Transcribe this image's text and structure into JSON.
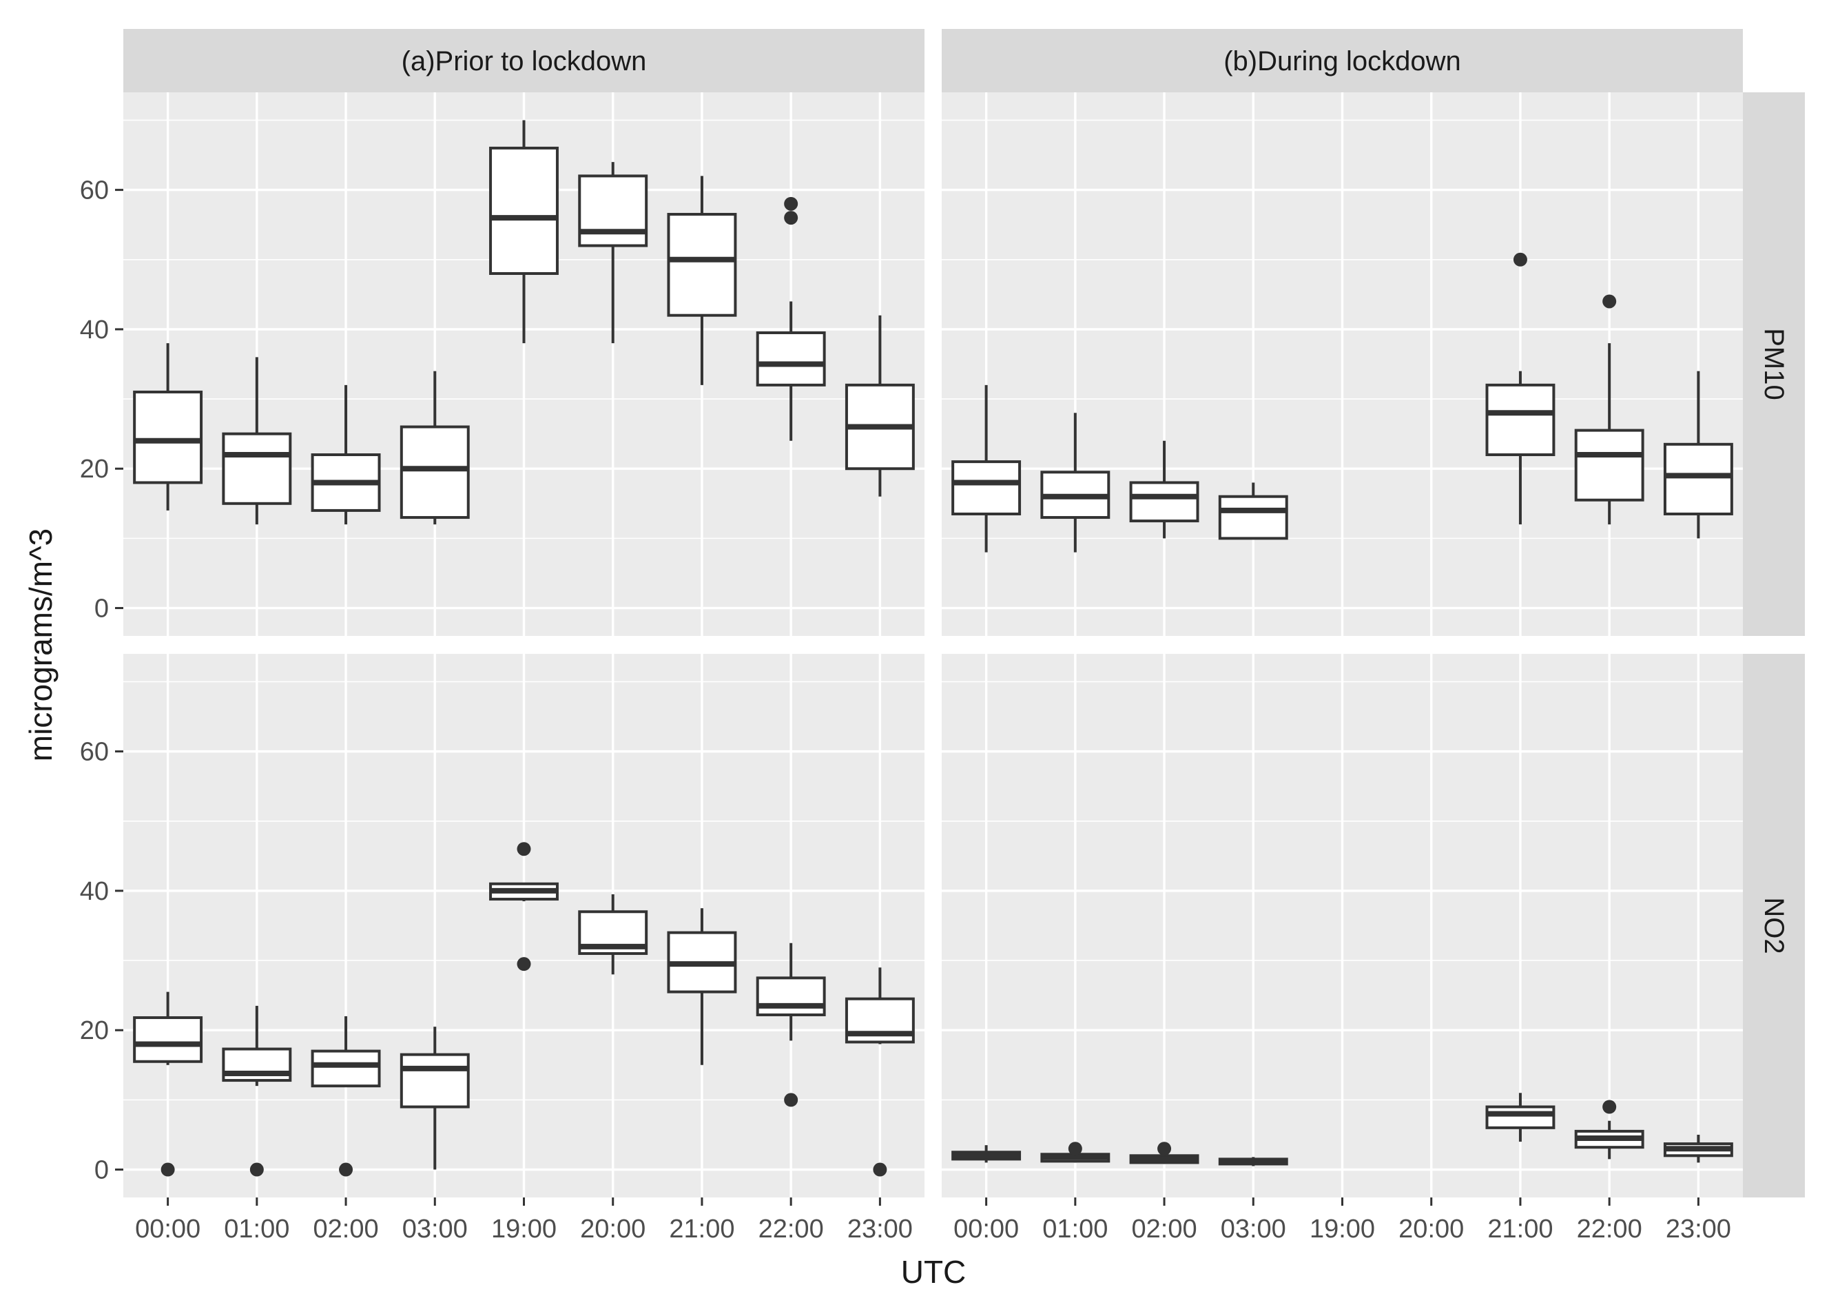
{
  "chart_data": {
    "type": "boxplot",
    "xlabel": "UTC",
    "ylabel": "micrograms/m^3",
    "categories": [
      "00:00",
      "01:00",
      "02:00",
      "03:00",
      "19:00",
      "20:00",
      "21:00",
      "22:00",
      "23:00"
    ],
    "ylim": [
      -4,
      74
    ],
    "yticks": [
      0,
      20,
      40,
      60
    ],
    "grid": true,
    "columns": [
      "(a)Prior to lockdown",
      "(b)During lockdown"
    ],
    "rows": [
      "PM10",
      "NO2"
    ],
    "panels": [
      {
        "col": "(a)Prior to lockdown",
        "row": "PM10",
        "boxes": [
          {
            "category": "00:00",
            "min": 14,
            "q1": 18,
            "median": 24,
            "q3": 31,
            "max": 38,
            "outliers": []
          },
          {
            "category": "01:00",
            "min": 12,
            "q1": 15,
            "median": 22,
            "q3": 25,
            "max": 36,
            "outliers": []
          },
          {
            "category": "02:00",
            "min": 12,
            "q1": 14,
            "median": 18,
            "q3": 22,
            "max": 32,
            "outliers": []
          },
          {
            "category": "03:00",
            "min": 12,
            "q1": 13,
            "median": 20,
            "q3": 26,
            "max": 34,
            "outliers": []
          },
          {
            "category": "19:00",
            "min": 38,
            "q1": 48,
            "median": 56,
            "q3": 66,
            "max": 70,
            "outliers": []
          },
          {
            "category": "20:00",
            "min": 38,
            "q1": 52,
            "median": 54,
            "q3": 62,
            "max": 64,
            "outliers": []
          },
          {
            "category": "21:00",
            "min": 32,
            "q1": 42,
            "median": 50,
            "q3": 56.5,
            "max": 62,
            "outliers": []
          },
          {
            "category": "22:00",
            "min": 24,
            "q1": 32,
            "median": 35,
            "q3": 39.5,
            "max": 44,
            "outliers": [
              56,
              58
            ]
          },
          {
            "category": "23:00",
            "min": 16,
            "q1": 20,
            "median": 26,
            "q3": 32,
            "max": 42,
            "outliers": []
          }
        ]
      },
      {
        "col": "(b)During lockdown",
        "row": "PM10",
        "boxes": [
          {
            "category": "00:00",
            "min": 8,
            "q1": 13.5,
            "median": 18,
            "q3": 21,
            "max": 32,
            "outliers": []
          },
          {
            "category": "01:00",
            "min": 8,
            "q1": 13,
            "median": 16,
            "q3": 19.5,
            "max": 28,
            "outliers": []
          },
          {
            "category": "02:00",
            "min": 10,
            "q1": 12.5,
            "median": 16,
            "q3": 18,
            "max": 24,
            "outliers": []
          },
          {
            "category": "03:00",
            "min": 10,
            "q1": 10,
            "median": 14,
            "q3": 16,
            "max": 18,
            "outliers": []
          },
          {
            "category": "21:00",
            "min": 12,
            "q1": 22,
            "median": 28,
            "q3": 32,
            "max": 34,
            "outliers": [
              50
            ]
          },
          {
            "category": "22:00",
            "min": 12,
            "q1": 15.5,
            "median": 22,
            "q3": 25.5,
            "max": 38,
            "outliers": [
              44
            ]
          },
          {
            "category": "23:00",
            "min": 10,
            "q1": 13.5,
            "median": 19,
            "q3": 23.5,
            "max": 34,
            "outliers": []
          }
        ]
      },
      {
        "col": "(a)Prior to lockdown",
        "row": "NO2",
        "boxes": [
          {
            "category": "00:00",
            "min": 15,
            "q1": 15.5,
            "median": 18,
            "q3": 21.8,
            "max": 25.5,
            "outliers": [
              0
            ]
          },
          {
            "category": "01:00",
            "min": 12,
            "q1": 12.8,
            "median": 13.8,
            "q3": 17.3,
            "max": 23.5,
            "outliers": [
              0
            ]
          },
          {
            "category": "02:00",
            "min": 12,
            "q1": 12,
            "median": 15,
            "q3": 17,
            "max": 22,
            "outliers": [
              0
            ]
          },
          {
            "category": "03:00",
            "min": 0,
            "q1": 9,
            "median": 14.5,
            "q3": 16.5,
            "max": 20.5,
            "outliers": []
          },
          {
            "category": "19:00",
            "min": 38.5,
            "q1": 38.8,
            "median": 40,
            "q3": 41,
            "max": 41,
            "outliers": [
              29.5,
              46
            ]
          },
          {
            "category": "20:00",
            "min": 28,
            "q1": 31,
            "median": 32,
            "q3": 37,
            "max": 39.5,
            "outliers": []
          },
          {
            "category": "21:00",
            "min": 15,
            "q1": 25.5,
            "median": 29.5,
            "q3": 34,
            "max": 37.5,
            "outliers": []
          },
          {
            "category": "22:00",
            "min": 18.5,
            "q1": 22.2,
            "median": 23.5,
            "q3": 27.5,
            "max": 32.5,
            "outliers": [
              10
            ]
          },
          {
            "category": "23:00",
            "min": 18,
            "q1": 18.3,
            "median": 19.5,
            "q3": 24.5,
            "max": 29,
            "outliers": [
              0
            ]
          }
        ]
      },
      {
        "col": "(b)During lockdown",
        "row": "NO2",
        "boxes": [
          {
            "category": "00:00",
            "min": 1,
            "q1": 1.5,
            "median": 2,
            "q3": 2.5,
            "max": 3.5,
            "outliers": []
          },
          {
            "category": "01:00",
            "min": 1,
            "q1": 1.2,
            "median": 1.8,
            "q3": 2.2,
            "max": 2.5,
            "outliers": [
              3
            ]
          },
          {
            "category": "02:00",
            "min": 0.8,
            "q1": 1,
            "median": 1.5,
            "q3": 2,
            "max": 2.5,
            "outliers": [
              3
            ]
          },
          {
            "category": "03:00",
            "min": 0.5,
            "q1": 0.8,
            "median": 1.1,
            "q3": 1.5,
            "max": 1.8,
            "outliers": []
          },
          {
            "category": "21:00",
            "min": 4,
            "q1": 6,
            "median": 8,
            "q3": 9,
            "max": 11,
            "outliers": []
          },
          {
            "category": "22:00",
            "min": 1.5,
            "q1": 3.2,
            "median": 4.5,
            "q3": 5.5,
            "max": 7,
            "outliers": [
              9
            ]
          },
          {
            "category": "23:00",
            "min": 1,
            "q1": 2,
            "median": 3,
            "q3": 3.7,
            "max": 5,
            "outliers": []
          }
        ]
      }
    ]
  },
  "colors": {
    "panel_bg": "#ebebeb",
    "strip_bg": "#d9d9d9",
    "grid": "#ffffff",
    "box": "#333333",
    "text": "#1a1a1a",
    "tick_text": "#4d4d4d"
  }
}
